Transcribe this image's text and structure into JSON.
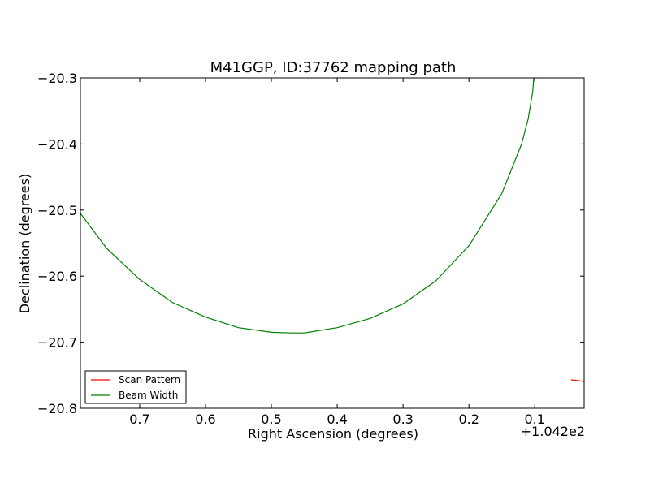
{
  "chart_data": {
    "type": "line",
    "title": "M41GGP, ID:37762 mapping path",
    "xlabel": "Right Ascension (degrees)",
    "ylabel": "Declination (degrees)",
    "x_offset_label": "+1.042e2",
    "x_axis_inverted": true,
    "xlim": [
      0.79,
      0.025
    ],
    "ylim": [
      -20.8,
      -20.3
    ],
    "x_ticks": [
      0.7,
      0.6,
      0.5,
      0.4,
      0.3,
      0.2,
      0.1
    ],
    "x_tick_labels": [
      "0.7",
      "0.6",
      "0.5",
      "0.4",
      "0.3",
      "0.2",
      "0.1"
    ],
    "y_ticks": [
      -20.3,
      -20.4,
      -20.5,
      -20.6,
      -20.7,
      -20.8
    ],
    "y_tick_labels": [
      "−20.3",
      "−20.4",
      "−20.5",
      "−20.6",
      "−20.7",
      "−20.8"
    ],
    "grid": false,
    "legend_placement": "lower-left",
    "series": [
      {
        "name": "Scan Pattern",
        "color": "#ff0000",
        "x": [
          0.045,
          0.035,
          0.028,
          0.025
        ],
        "y": [
          -20.757,
          -20.758,
          -20.759,
          -20.76
        ]
      },
      {
        "name": "Beam Width",
        "color": "#008000",
        "x": [
          0.79,
          0.75,
          0.7,
          0.65,
          0.6,
          0.55,
          0.5,
          0.47,
          0.45,
          0.4,
          0.35,
          0.3,
          0.25,
          0.2,
          0.15,
          0.12,
          0.11,
          0.103,
          0.1015
        ],
        "y": [
          -20.505,
          -20.558,
          -20.605,
          -20.64,
          -20.662,
          -20.678,
          -20.685,
          -20.686,
          -20.686,
          -20.678,
          -20.664,
          -20.642,
          -20.607,
          -20.554,
          -20.475,
          -20.4,
          -20.362,
          -20.32,
          -20.3
        ]
      }
    ]
  }
}
